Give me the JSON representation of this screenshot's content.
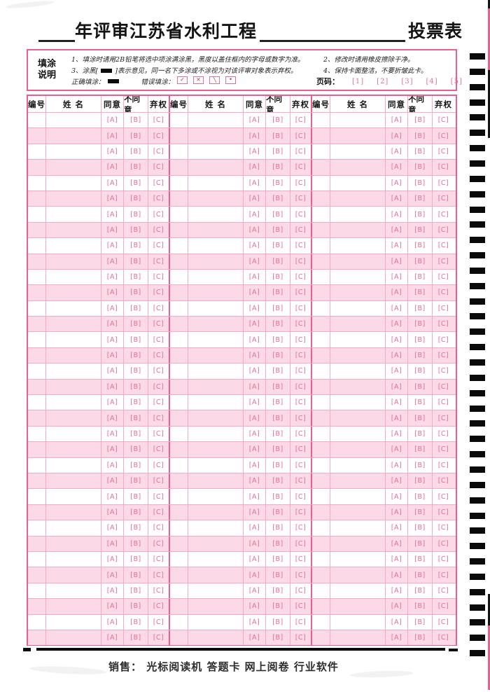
{
  "title": {
    "blank1": "",
    "main": "年评审江苏省水利工程",
    "blank2": "",
    "suffix": "投票表"
  },
  "instructions": {
    "label_line1": "填涂",
    "label_line2": "说明",
    "item1": "1、填涂时请用2B铅笔将选中项涂满涂黑，黑度以盖住框内的字母或数字为准。",
    "item2": "2、修改时请用橡皮擦除干净。",
    "item3_pre": "3、涂黑[",
    "item3_post": "]表示意见，同一名下多涂或不涂视为对该评审对象表示弃权。",
    "item4": "4、保持卡面整洁，不要折皱此卡。",
    "correct_label": "正确填涂：",
    "wrong_label": "错误填涂：",
    "wrong_marks": [
      "✓",
      "×",
      "╲",
      "•"
    ],
    "page_label": "页码：",
    "page_marks": [
      "[1]",
      "[2]",
      "[3]",
      "[4]",
      "[5]"
    ]
  },
  "table": {
    "group_count": 3,
    "row_count": 34,
    "headers": {
      "number": "编号",
      "name": "姓 名",
      "agree": "同意",
      "disagree": "不同意",
      "abstain": "弃权"
    },
    "bubbles": {
      "agree": "[A]",
      "disagree": "[B]",
      "abstain": "[C]"
    }
  },
  "timing_marks": {
    "count": 40
  },
  "footer": {
    "sales_line": "销售： 光标阅读机  答题卡  网上阅卷  行业软件"
  },
  "colors": {
    "accent_pink": "#ec5f8c",
    "grid_pink": "#f6aac4",
    "row_pink": "#fbd9e6",
    "bubble_pink": "#e76e91",
    "ink_black": "#0c0c0c"
  }
}
